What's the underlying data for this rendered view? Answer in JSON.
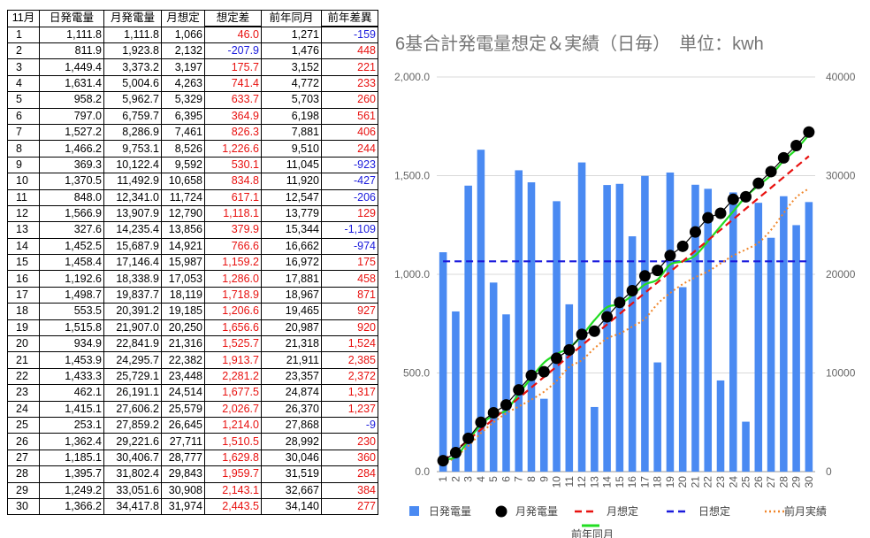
{
  "table": {
    "headers": [
      "11月",
      "日発電量",
      "月発電量",
      "月想定",
      "想定差",
      "前年同月",
      "前年差異"
    ],
    "rows": [
      [
        "1",
        "1,111.8",
        "1,111.8",
        "1,066",
        "46.0",
        "1,271",
        "-159"
      ],
      [
        "2",
        "811.9",
        "1,923.8",
        "2,132",
        "-207.9",
        "1,476",
        "448"
      ],
      [
        "3",
        "1,449.4",
        "3,373.2",
        "3,197",
        "175.7",
        "3,152",
        "221"
      ],
      [
        "4",
        "1,631.4",
        "5,004.6",
        "4,263",
        "741.4",
        "4,772",
        "233"
      ],
      [
        "5",
        "958.2",
        "5,962.7",
        "5,329",
        "633.7",
        "5,703",
        "260"
      ],
      [
        "6",
        "797.0",
        "6,759.7",
        "6,395",
        "364.9",
        "6,198",
        "561"
      ],
      [
        "7",
        "1,527.2",
        "8,286.9",
        "7,461",
        "826.3",
        "7,881",
        "406"
      ],
      [
        "8",
        "1,466.2",
        "9,753.1",
        "8,526",
        "1,226.6",
        "9,510",
        "244"
      ],
      [
        "9",
        "369.3",
        "10,122.4",
        "9,592",
        "530.1",
        "11,045",
        "-923"
      ],
      [
        "10",
        "1,370.5",
        "11,492.9",
        "10,658",
        "834.8",
        "11,920",
        "-427"
      ],
      [
        "11",
        "848.0",
        "12,341.0",
        "11,724",
        "617.1",
        "12,547",
        "-206"
      ],
      [
        "12",
        "1,566.9",
        "13,907.9",
        "12,790",
        "1,118.1",
        "13,779",
        "129"
      ],
      [
        "13",
        "327.6",
        "14,235.4",
        "13,856",
        "379.9",
        "15,344",
        "-1,109"
      ],
      [
        "14",
        "1,452.5",
        "15,687.9",
        "14,921",
        "766.6",
        "16,662",
        "-974"
      ],
      [
        "15",
        "1,458.4",
        "17,146.4",
        "15,987",
        "1,159.2",
        "16,972",
        "175"
      ],
      [
        "16",
        "1,192.6",
        "18,338.9",
        "17,053",
        "1,286.0",
        "17,881",
        "458"
      ],
      [
        "17",
        "1,498.7",
        "19,837.7",
        "18,119",
        "1,718.9",
        "18,967",
        "871"
      ],
      [
        "18",
        "553.5",
        "20,391.2",
        "19,185",
        "1,206.6",
        "19,465",
        "927"
      ],
      [
        "19",
        "1,515.8",
        "21,907.0",
        "20,250",
        "1,656.6",
        "20,987",
        "920"
      ],
      [
        "20",
        "934.9",
        "22,841.9",
        "21,316",
        "1,525.7",
        "21,318",
        "1,524"
      ],
      [
        "21",
        "1,453.9",
        "24,295.7",
        "22,382",
        "1,913.7",
        "21,911",
        "2,385"
      ],
      [
        "22",
        "1,433.3",
        "25,729.1",
        "23,448",
        "2,281.2",
        "23,357",
        "2,372"
      ],
      [
        "23",
        "462.1",
        "26,191.1",
        "24,514",
        "1,677.5",
        "24,874",
        "1,317"
      ],
      [
        "24",
        "1,415.1",
        "27,606.2",
        "25,579",
        "2,026.7",
        "26,370",
        "1,237"
      ],
      [
        "25",
        "253.1",
        "27,859.2",
        "26,645",
        "1,214.0",
        "27,868",
        "-9"
      ],
      [
        "26",
        "1,362.4",
        "29,221.6",
        "27,711",
        "1,510.5",
        "28,992",
        "230"
      ],
      [
        "27",
        "1,185.1",
        "30,406.7",
        "28,777",
        "1,629.8",
        "30,046",
        "360"
      ],
      [
        "28",
        "1,395.7",
        "31,802.4",
        "29,843",
        "1,959.7",
        "31,519",
        "284"
      ],
      [
        "29",
        "1,249.2",
        "33,051.6",
        "30,908",
        "2,143.1",
        "32,667",
        "384"
      ],
      [
        "30",
        "1,366.2",
        "34,417.8",
        "31,974",
        "2,443.5",
        "34,140",
        "277"
      ]
    ]
  },
  "chart_data": {
    "type": "bar",
    "title": "6基合計発電量想定＆実績（日毎）　単位：kwh",
    "categories": [
      "1",
      "2",
      "3",
      "4",
      "5",
      "6",
      "7",
      "8",
      "9",
      "10",
      "11",
      "12",
      "13",
      "14",
      "15",
      "16",
      "17",
      "18",
      "19",
      "20",
      "21",
      "22",
      "23",
      "24",
      "25",
      "26",
      "27",
      "28",
      "29",
      "30"
    ],
    "y_left": {
      "range": [
        0,
        2000
      ],
      "ticks": [
        "0.0",
        "500.0",
        "1,000.0",
        "1,500.0",
        "2,000.0"
      ]
    },
    "y_right": {
      "range": [
        0,
        40000
      ],
      "ticks": [
        "0",
        "10000",
        "20000",
        "30000",
        "40000"
      ]
    },
    "grid": true,
    "legend_position": "bottom",
    "series": [
      {
        "name": "日発電量",
        "type": "bar",
        "axis": "left",
        "color": "#4a8af2",
        "values": [
          1111.8,
          811.9,
          1449.4,
          1631.4,
          958.2,
          797.0,
          1527.2,
          1466.2,
          369.3,
          1370.5,
          848.0,
          1566.9,
          327.6,
          1452.5,
          1458.4,
          1192.6,
          1498.7,
          553.5,
          1515.8,
          934.9,
          1453.9,
          1433.3,
          462.1,
          1415.1,
          253.1,
          1362.4,
          1185.1,
          1395.7,
          1249.2,
          1366.2
        ]
      },
      {
        "name": "月発電量",
        "type": "scatter-line",
        "axis": "right",
        "color": "#000000",
        "values": [
          1111.8,
          1923.8,
          3373.2,
          5004.6,
          5962.7,
          6759.7,
          8286.9,
          9753.1,
          10122.4,
          11492.9,
          12341.0,
          13907.9,
          14235.4,
          15687.9,
          17146.4,
          18338.9,
          19837.7,
          20391.2,
          21907.0,
          22841.9,
          24295.7,
          25729.1,
          26191.1,
          27606.2,
          27859.2,
          29221.6,
          30406.7,
          31802.4,
          33051.6,
          34417.8
        ]
      },
      {
        "name": "月想定",
        "type": "line-dashed",
        "axis": "right",
        "color": "#e8110f",
        "values": [
          1066,
          2132,
          3197,
          4263,
          5329,
          6395,
          7461,
          8526,
          9592,
          10658,
          11724,
          12790,
          13856,
          14921,
          15987,
          17053,
          18119,
          19185,
          20250,
          21316,
          22382,
          23448,
          24514,
          25579,
          26645,
          27711,
          28777,
          29843,
          30908,
          31974
        ]
      },
      {
        "name": "日想定",
        "type": "line-dashed",
        "axis": "left",
        "color": "#1a1adc",
        "values": [
          1066,
          1066,
          1066,
          1066,
          1066,
          1066,
          1066,
          1066,
          1066,
          1066,
          1066,
          1066,
          1066,
          1066,
          1066,
          1066,
          1066,
          1066,
          1066,
          1066,
          1066,
          1066,
          1066,
          1066,
          1066,
          1066,
          1066,
          1066,
          1066,
          1066
        ]
      },
      {
        "name": "前月実績",
        "type": "line-dotted",
        "axis": "right",
        "color": "#f0862a",
        "values": [
          700,
          1500,
          2600,
          3900,
          5000,
          5900,
          6600,
          7300,
          8100,
          9200,
          10600,
          11300,
          12500,
          13500,
          14000,
          14700,
          15500,
          17000,
          18100,
          19000,
          19700,
          20300,
          21100,
          21900,
          22500,
          23200,
          24500,
          26200,
          27800,
          28700
        ]
      },
      {
        "name": "前年同月",
        "type": "line",
        "axis": "right",
        "color": "#22dd22",
        "values": [
          1271,
          1476,
          3152,
          4772,
          5703,
          6198,
          7881,
          9510,
          11045,
          11920,
          12547,
          13779,
          15344,
          16662,
          16972,
          17881,
          18967,
          19465,
          20987,
          21318,
          21911,
          23357,
          24874,
          26370,
          27868,
          28992,
          30046,
          31519,
          32667,
          34140
        ]
      }
    ]
  }
}
